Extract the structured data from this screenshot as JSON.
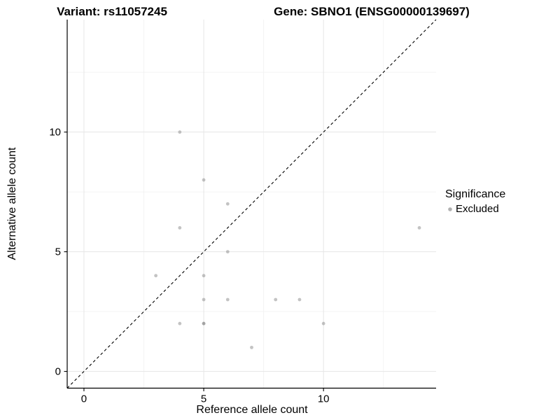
{
  "titles": {
    "variant": "Variant: rs11057245",
    "gene": "Gene: SBNO1 (ENSG00000139697)"
  },
  "legend": {
    "title": "Significance",
    "items": [
      {
        "label": "Excluded",
        "marker_color": "#878787",
        "marker_opacity": 0.5
      }
    ]
  },
  "chart_data": {
    "type": "scatter",
    "title": "Variant: rs11057245 | Gene: SBNO1 (ENSG00000139697)",
    "xlabel": "Reference allele count",
    "ylabel": "Alternative allele count",
    "xlim": [
      -0.7,
      14.7
    ],
    "ylim": [
      -0.7,
      14.7
    ],
    "x_major_ticks": [
      0,
      5,
      10
    ],
    "y_major_ticks": [
      0,
      5,
      10
    ],
    "x_minor_ticks": [
      2.5,
      7.5,
      12.5
    ],
    "y_minor_ticks": [
      2.5,
      7.5,
      12.5
    ],
    "grid": "major and minor, light gray on white",
    "legend_position": "right",
    "reference_line": {
      "slope": 1,
      "intercept": 0,
      "style": "dashed",
      "color": "#000000"
    },
    "series": [
      {
        "name": "Excluded",
        "color": "#878787",
        "opacity": 0.5,
        "points": [
          {
            "x": 3,
            "y": 4
          },
          {
            "x": 4,
            "y": 2
          },
          {
            "x": 4,
            "y": 6
          },
          {
            "x": 4,
            "y": 10
          },
          {
            "x": 5,
            "y": 2
          },
          {
            "x": 5,
            "y": 2
          },
          {
            "x": 5,
            "y": 3
          },
          {
            "x": 5,
            "y": 4
          },
          {
            "x": 5,
            "y": 8
          },
          {
            "x": 6,
            "y": 3
          },
          {
            "x": 6,
            "y": 5
          },
          {
            "x": 6,
            "y": 7
          },
          {
            "x": 7,
            "y": 1
          },
          {
            "x": 8,
            "y": 3
          },
          {
            "x": 9,
            "y": 3
          },
          {
            "x": 10,
            "y": 2
          },
          {
            "x": 14,
            "y": 6
          }
        ]
      }
    ]
  },
  "colors": {
    "background": "#ffffff",
    "grid_major": "#e6e6e6",
    "grid_minor": "#f2f2f2",
    "axis_line": "#000000",
    "text": "#000000",
    "point": "#878787"
  }
}
